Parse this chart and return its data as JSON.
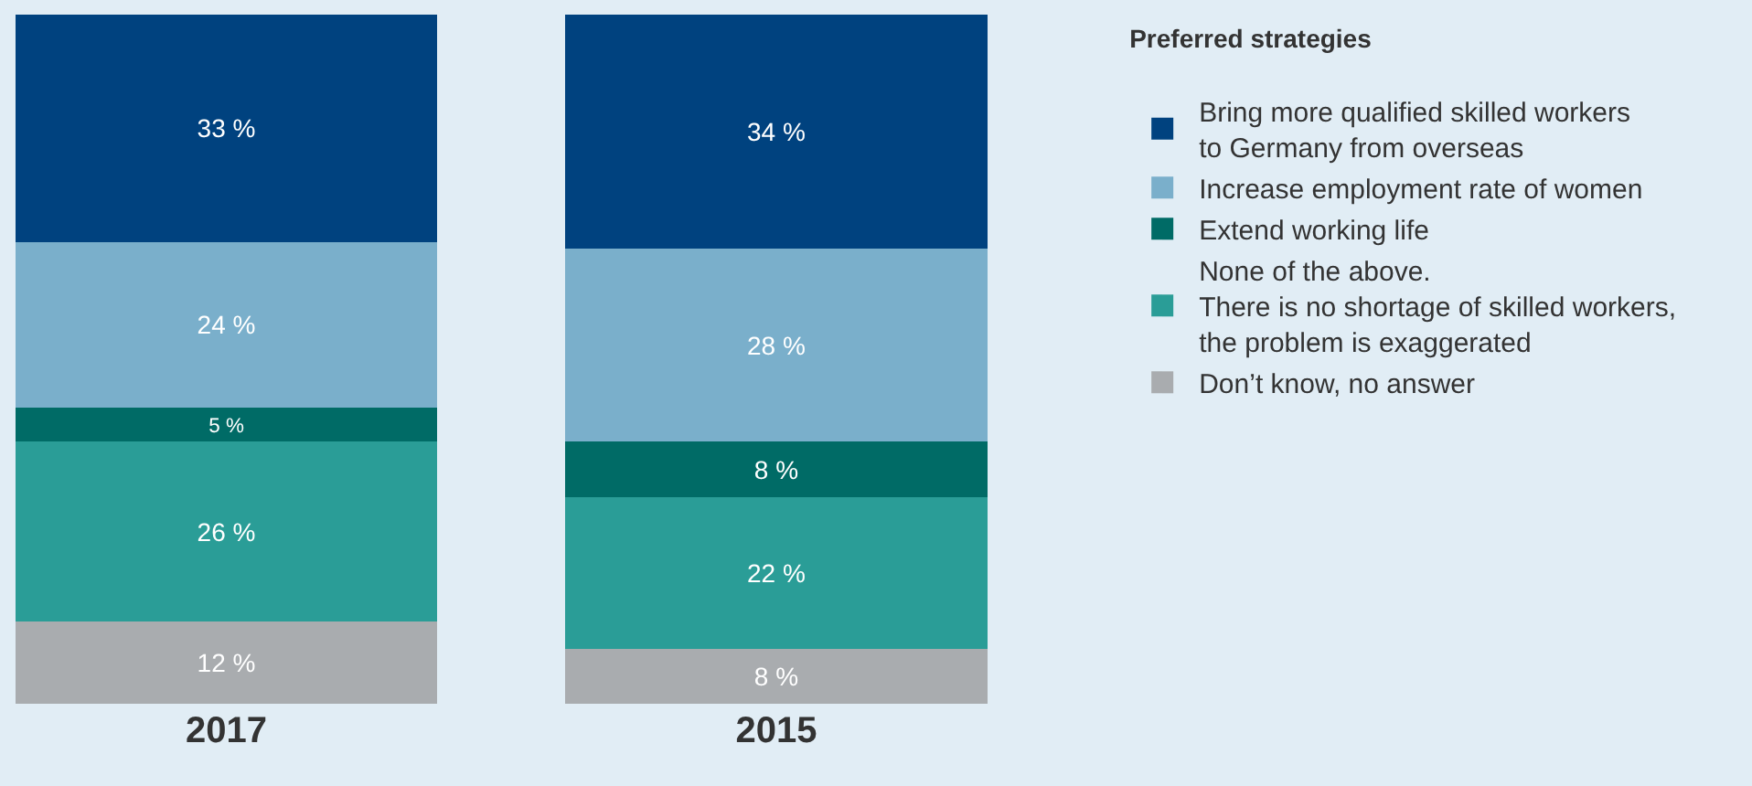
{
  "chart_data": {
    "type": "bar",
    "stacked": true,
    "categories": [
      "2017",
      "2015"
    ],
    "legend_title": "Preferred strategies",
    "legend": "right",
    "series": [
      {
        "name": "Don’t know, no answer",
        "color": "#a9acaf",
        "values": [
          12,
          8
        ],
        "value_labels": [
          "12 %",
          "8 %"
        ]
      },
      {
        "name": "None of the above.\nThere is no shortage of skilled workers,\nthe problem is exaggerated",
        "color": "#2a9d97",
        "values": [
          26,
          22
        ],
        "value_labels": [
          "26 %",
          "22 %"
        ]
      },
      {
        "name": "Extend working life",
        "color": "#006b66",
        "values": [
          5,
          8
        ],
        "value_labels": [
          "5 %",
          "8 %"
        ]
      },
      {
        "name": "Increase employment rate of women",
        "color": "#7aafcb",
        "values": [
          24,
          28
        ],
        "value_labels": [
          "24 %",
          "28 %"
        ]
      },
      {
        "name": "Bring more qualified skilled workers\nto Germany from overseas",
        "color": "#00427f",
        "values": [
          33,
          34
        ],
        "value_labels": [
          "33 %",
          "34 %"
        ]
      }
    ]
  }
}
